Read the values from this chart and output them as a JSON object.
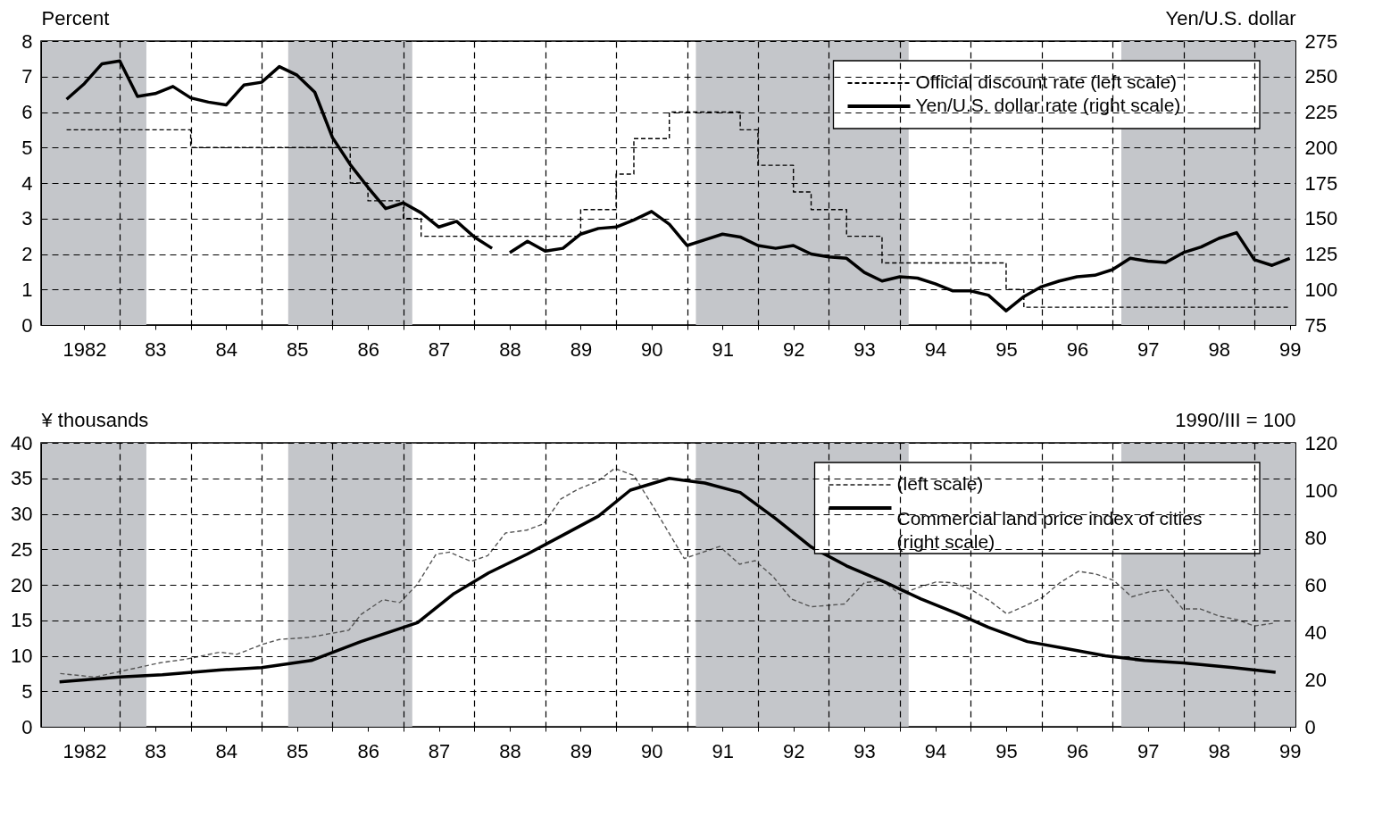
{
  "chart_data": [
    {
      "type": "line",
      "ylabel": "Percent",
      "y2label": "Yen/U.S. dollar",
      "xlim": [
        1981.39,
        1999.08
      ],
      "xticks": [
        1982,
        {
          "value": 1982.5,
          "label": null
        },
        {
          "value": 1983,
          "label": "83"
        },
        {
          "value": 1983.5,
          "label": null
        },
        {
          "value": 1984,
          "label": "84"
        },
        {
          "value": 1984.5,
          "label": null
        },
        {
          "value": 1985,
          "label": "85"
        },
        {
          "value": 1985.5,
          "label": null
        },
        {
          "value": 1986,
          "label": "86"
        },
        {
          "value": 1986.5,
          "label": null
        },
        {
          "value": 1987,
          "label": "87"
        },
        {
          "value": 1987.5,
          "label": null
        },
        {
          "value": 1988,
          "label": "88"
        },
        {
          "value": 1988.5,
          "label": null
        },
        {
          "value": 1989,
          "label": "89"
        },
        {
          "value": 1989.5,
          "label": null
        },
        {
          "value": 1990,
          "label": "90"
        },
        {
          "value": 1990.5,
          "label": null
        },
        {
          "value": 1991,
          "label": "91"
        },
        {
          "value": 1991.5,
          "label": null
        },
        {
          "value": 1992,
          "label": "92"
        },
        {
          "value": 1992.5,
          "label": null
        },
        {
          "value": 1993,
          "label": "93"
        },
        {
          "value": 1993.5,
          "label": null
        },
        {
          "value": 1994,
          "label": "94"
        },
        {
          "value": 1994.5,
          "label": null
        },
        {
          "value": 1995,
          "label": "95"
        },
        {
          "value": 1995.5,
          "label": null
        },
        {
          "value": 1996,
          "label": "96"
        },
        {
          "value": 1996.5,
          "label": null
        },
        {
          "value": 1997,
          "label": "97"
        },
        {
          "value": 1997.5,
          "label": null
        },
        {
          "value": 1998,
          "label": "98"
        },
        {
          "value": 1998.5,
          "label": null
        },
        {
          "value": 1999,
          "label": "99"
        }
      ],
      "ylim": [
        0,
        8
      ],
      "yticks": [
        0,
        1,
        2,
        3,
        4,
        5,
        6,
        7,
        8
      ],
      "y2lim": [
        75,
        275
      ],
      "y2ticks": [
        75,
        100,
        125,
        150,
        175,
        200,
        225,
        250,
        275
      ],
      "grid": true,
      "legend": "top right",
      "bands": [
        {
          "axis": "x",
          "from": 1981.39,
          "to": 1982.875,
          "color": "#c4c6ca"
        },
        {
          "axis": "x",
          "from": 1984.875,
          "to": 1986.625,
          "color": "#c4c6ca"
        },
        {
          "axis": "x",
          "from": 1990.625,
          "to": 1993.625,
          "color": "#c4c6ca"
        },
        {
          "axis": "x",
          "from": 1996.625,
          "to": 1999.08,
          "color": "#c4c6ca"
        }
      ],
      "series": [
        {
          "name": "Official discount rate (left scale)",
          "type": "step",
          "color": "#000000",
          "line_style": "dashed",
          "x": [
            1981.75,
            1983.5,
            1985.75,
            1986.0,
            1986.5,
            1986.75,
            1989.0,
            1989.5,
            1989.75,
            1990.25,
            1991.25,
            1991.5,
            1992.0,
            1992.25,
            1992.75,
            1993.25,
            1995.0,
            1995.25,
            1999.0
          ],
          "values": [
            5.5,
            5.0,
            4.0,
            3.5,
            3.0,
            2.5,
            3.25,
            4.25,
            5.25,
            6.0,
            5.5,
            4.5,
            3.75,
            3.25,
            2.5,
            1.75,
            1.0,
            0.5,
            0.5
          ]
        },
        {
          "name": "Yen/U.S. dollar rate (right scale)",
          "type": "line",
          "axis": "y2",
          "color": "#000000",
          "line_style": "solid",
          "x": [
            1981.75,
            1982.0,
            1982.25,
            1982.5,
            1982.75,
            1983.0,
            1983.25,
            1983.5,
            1983.75,
            1984.0,
            1984.25,
            1984.5,
            1984.75,
            1985.0,
            1985.25,
            1985.5,
            1985.75,
            1986.0,
            1986.25,
            1986.5,
            1986.75,
            1987.0,
            1987.25,
            1987.5,
            1987.75,
            1987.875,
            1988.0,
            1988.25,
            1988.5,
            1988.75,
            1989.0,
            1989.25,
            1989.5,
            1989.75,
            1990.0,
            1990.25,
            1990.5,
            1990.75,
            1991.0,
            1991.25,
            1991.5,
            1991.75,
            1992.0,
            1992.25,
            1992.5,
            1992.75,
            1993.0,
            1993.25,
            1993.5,
            1993.75,
            1994.0,
            1994.25,
            1994.5,
            1994.75,
            1995.0,
            1995.25,
            1995.5,
            1995.75,
            1996.0,
            1996.25,
            1996.5,
            1996.75,
            1997.0,
            1997.25,
            1997.5,
            1997.75,
            1998.0,
            1998.25,
            1998.5,
            1998.75,
            1999.0
          ],
          "values": [
            234,
            245,
            259,
            261,
            236,
            238,
            243,
            235,
            232,
            230,
            244,
            246,
            257,
            251,
            239,
            207,
            188,
            172,
            157,
            161,
            154,
            144,
            148,
            137,
            129,
            null,
            126,
            134,
            127,
            129,
            139,
            143,
            144,
            149,
            155,
            146,
            131,
            135,
            139,
            137,
            131,
            129,
            131,
            125,
            123,
            122,
            112,
            106,
            109,
            108,
            104,
            99,
            99,
            96,
            85,
            95,
            102,
            106,
            109,
            110,
            114,
            122,
            120,
            119,
            126,
            130,
            136,
            140,
            121,
            117,
            122
          ]
        }
      ]
    },
    {
      "type": "line",
      "ylabel": "¥ thousands",
      "y2label": "1990/III = 100",
      "xlim": [
        1981.39,
        1999.08
      ],
      "xticks": [
        1982,
        {
          "value": 1982.5,
          "label": null
        },
        {
          "value": 1983,
          "label": "83"
        },
        {
          "value": 1983.5,
          "label": null
        },
        {
          "value": 1984,
          "label": "84"
        },
        {
          "value": 1984.5,
          "label": null
        },
        {
          "value": 1985,
          "label": "85"
        },
        {
          "value": 1985.5,
          "label": null
        },
        {
          "value": 1986,
          "label": "86"
        },
        {
          "value": 1986.5,
          "label": null
        },
        {
          "value": 1987,
          "label": "87"
        },
        {
          "value": 1987.5,
          "label": null
        },
        {
          "value": 1988,
          "label": "88"
        },
        {
          "value": 1988.5,
          "label": null
        },
        {
          "value": 1989,
          "label": "89"
        },
        {
          "value": 1989.5,
          "label": null
        },
        {
          "value": 1990,
          "label": "90"
        },
        {
          "value": 1990.5,
          "label": null
        },
        {
          "value": 1991,
          "label": "91"
        },
        {
          "value": 1991.5,
          "label": null
        },
        {
          "value": 1992,
          "label": "92"
        },
        {
          "value": 1992.5,
          "label": null
        },
        {
          "value": 1993,
          "label": "93"
        },
        {
          "value": 1993.5,
          "label": null
        },
        {
          "value": 1994,
          "label": "94"
        },
        {
          "value": 1994.5,
          "label": null
        },
        {
          "value": 1995,
          "label": "95"
        },
        {
          "value": 1995.5,
          "label": null
        },
        {
          "value": 1996,
          "label": "96"
        },
        {
          "value": 1996.5,
          "label": null
        },
        {
          "value": 1997,
          "label": "97"
        },
        {
          "value": 1997.5,
          "label": null
        },
        {
          "value": 1998,
          "label": "98"
        },
        {
          "value": 1998.5,
          "label": null
        },
        {
          "value": 1999,
          "label": "99"
        }
      ],
      "ylim": [
        0,
        40
      ],
      "yticks": [
        0,
        5,
        10,
        15,
        20,
        25,
        30,
        35,
        40
      ],
      "y2lim": [
        0,
        120
      ],
      "y2ticks": [
        0,
        20,
        40,
        60,
        80,
        100,
        120
      ],
      "grid": true,
      "legend": "top right",
      "bands": [
        {
          "axis": "x",
          "from": 1981.39,
          "to": 1982.875,
          "color": "#c4c6ca"
        },
        {
          "axis": "x",
          "from": 1984.875,
          "to": 1986.625,
          "color": "#c4c6ca"
        },
        {
          "axis": "x",
          "from": 1990.625,
          "to": 1993.625,
          "color": "#c4c6ca"
        },
        {
          "axis": "x",
          "from": 1996.625,
          "to": 1999.08,
          "color": "#c4c6ca"
        }
      ],
      "series": [
        {
          "name": "(left scale)",
          "type": "line",
          "color": "#555555",
          "line_style": "dashed",
          "x": [
            1981.66,
            1982.15,
            1982.51,
            1982.88,
            1983.06,
            1983.42,
            1983.91,
            1984.15,
            1984.51,
            1984.75,
            1985.18,
            1985.73,
            1985.9,
            1986.21,
            1986.45,
            1986.69,
            1986.96,
            1987.15,
            1987.45,
            1987.69,
            1987.94,
            1988.24,
            1988.48,
            1988.72,
            1988.97,
            1989.24,
            1989.48,
            1989.75,
            1990.03,
            1990.46,
            1990.96,
            1991.24,
            1991.46,
            1991.71,
            1991.97,
            1992.25,
            1992.72,
            1993.0,
            1993.25,
            1993.5,
            1993.76,
            1994.01,
            1994.26,
            1994.51,
            1994.76,
            1995.01,
            1995.26,
            1995.51,
            1995.76,
            1996.02,
            1996.27,
            1996.52,
            1996.77,
            1997.02,
            1997.27,
            1997.49,
            1997.74,
            1998.0,
            1998.25,
            1998.5,
            1998.78
          ],
          "values": [
            7.5,
            7.0,
            7.8,
            8.6,
            9.0,
            9.5,
            10.5,
            10.2,
            11.6,
            12.3,
            12.6,
            13.6,
            15.8,
            17.9,
            17.5,
            20.0,
            24.3,
            24.6,
            23.3,
            24.1,
            27.3,
            27.7,
            28.6,
            32.1,
            33.5,
            34.6,
            36.4,
            35.4,
            30.9,
            23.7,
            25.4,
            22.9,
            23.4,
            21.2,
            18.0,
            16.9,
            17.3,
            20.3,
            20.6,
            18.7,
            19.6,
            20.4,
            20.3,
            19.3,
            17.8,
            15.9,
            17.0,
            18.2,
            20.3,
            21.9,
            21.5,
            20.6,
            18.3,
            19.0,
            19.3,
            16.6,
            16.6,
            15.6,
            15.1,
            14.2,
            14.6
          ]
        },
        {
          "name": "Commercial land price index of cities (right scale)",
          "type": "line",
          "axis": "y2",
          "color": "#000000",
          "line_style": "solid",
          "x": [
            1981.65,
            1982.5,
            1983.1,
            1983.9,
            1984.5,
            1985.2,
            1985.9,
            1986.7,
            1987.2,
            1987.7,
            1988.25,
            1988.75,
            1989.25,
            1989.7,
            1990.25,
            1990.75,
            1991.25,
            1991.75,
            1992.25,
            1992.75,
            1993.3,
            1993.8,
            1994.3,
            1994.75,
            1995.3,
            1995.85,
            1996.4,
            1996.95,
            1997.5,
            1998.2,
            1998.8
          ],
          "values": [
            19,
            21,
            22,
            24,
            25,
            28,
            36,
            44,
            56,
            65,
            73,
            81,
            89,
            100,
            105,
            103,
            99,
            88,
            76,
            68,
            61,
            54,
            48,
            42,
            36,
            33,
            30,
            28,
            27,
            25,
            23
          ]
        }
      ]
    }
  ]
}
